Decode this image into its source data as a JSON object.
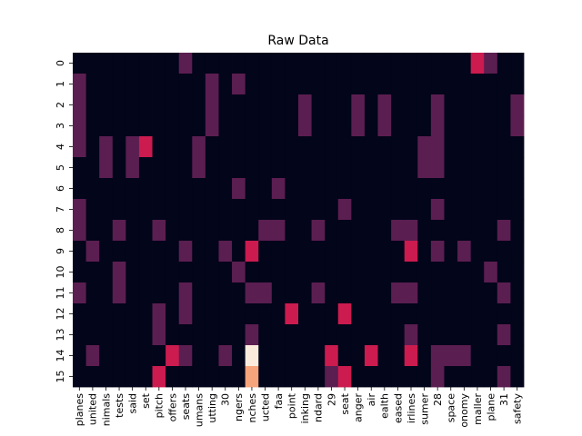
{
  "chart_data": {
    "type": "heatmap",
    "title": "Raw Data",
    "xlabel": "",
    "ylabel": "",
    "y_labels": [
      "0",
      "1",
      "2",
      "3",
      "4",
      "5",
      "6",
      "7",
      "8",
      "9",
      "10",
      "11",
      "12",
      "13",
      "14",
      "15"
    ],
    "x_labels": [
      "planes",
      "united",
      "nimals",
      "tests",
      "said",
      "set",
      "pitch",
      "offers",
      "seats",
      "umans",
      "utting",
      "30",
      "ngers",
      "nches",
      "ucted",
      "faa",
      "point",
      "inking",
      "ndard",
      "29",
      "seat",
      "anger",
      "air",
      "ealth",
      "eased",
      "irlines",
      "sumer",
      "28",
      "space",
      "onomy",
      "maller",
      "plane",
      "31",
      "safety"
    ],
    "colormap": [
      "#03051a",
      "#5b1e51",
      "#cb1b4f",
      "#f6a47b",
      "#faebdd"
    ],
    "vmin": 0,
    "vmax": 4,
    "grid": false,
    "colorbar": false,
    "values": [
      [
        0,
        0,
        0,
        0,
        0,
        0,
        0,
        0,
        1,
        0,
        0,
        0,
        0,
        0,
        0,
        0,
        0,
        0,
        0,
        0,
        0,
        0,
        0,
        0,
        0,
        0,
        0,
        0,
        0,
        0,
        2,
        1,
        0,
        0
      ],
      [
        1,
        0,
        0,
        0,
        0,
        0,
        0,
        0,
        0,
        0,
        1,
        0,
        1,
        0,
        0,
        0,
        0,
        0,
        0,
        0,
        0,
        0,
        0,
        0,
        0,
        0,
        0,
        0,
        0,
        0,
        0,
        0,
        0,
        0
      ],
      [
        1,
        0,
        0,
        0,
        0,
        0,
        0,
        0,
        0,
        0,
        1,
        0,
        0,
        0,
        0,
        0,
        0,
        1,
        0,
        0,
        0,
        1,
        0,
        1,
        0,
        0,
        0,
        1,
        0,
        0,
        0,
        0,
        0,
        1
      ],
      [
        1,
        0,
        0,
        0,
        0,
        0,
        0,
        0,
        0,
        0,
        1,
        0,
        0,
        0,
        0,
        0,
        0,
        1,
        0,
        0,
        0,
        1,
        0,
        1,
        0,
        0,
        0,
        1,
        0,
        0,
        0,
        0,
        0,
        1
      ],
      [
        1,
        0,
        1,
        0,
        1,
        2,
        0,
        0,
        0,
        1,
        0,
        0,
        0,
        0,
        0,
        0,
        0,
        0,
        0,
        0,
        0,
        0,
        0,
        0,
        0,
        0,
        1,
        1,
        0,
        0,
        0,
        0,
        0,
        0
      ],
      [
        0,
        0,
        1,
        0,
        1,
        0,
        0,
        0,
        0,
        1,
        0,
        0,
        0,
        0,
        0,
        0,
        0,
        0,
        0,
        0,
        0,
        0,
        0,
        0,
        0,
        0,
        1,
        1,
        0,
        0,
        0,
        0,
        0,
        0
      ],
      [
        0,
        0,
        0,
        0,
        0,
        0,
        0,
        0,
        0,
        0,
        0,
        0,
        1,
        0,
        0,
        1,
        0,
        0,
        0,
        0,
        0,
        0,
        0,
        0,
        0,
        0,
        0,
        0,
        0,
        0,
        0,
        0,
        0,
        0
      ],
      [
        1,
        0,
        0,
        0,
        0,
        0,
        0,
        0,
        0,
        0,
        0,
        0,
        0,
        0,
        0,
        0,
        0,
        0,
        0,
        0,
        1,
        0,
        0,
        0,
        0,
        0,
        0,
        1,
        0,
        0,
        0,
        0,
        0,
        0
      ],
      [
        1,
        0,
        0,
        1,
        0,
        0,
        1,
        0,
        0,
        0,
        0,
        0,
        0,
        0,
        1,
        1,
        0,
        0,
        1,
        0,
        0,
        0,
        0,
        0,
        1,
        1,
        0,
        0,
        0,
        0,
        0,
        0,
        1,
        0
      ],
      [
        0,
        1,
        0,
        0,
        0,
        0,
        0,
        0,
        1,
        0,
        0,
        1,
        0,
        2,
        0,
        0,
        0,
        0,
        0,
        0,
        0,
        0,
        0,
        0,
        0,
        2,
        0,
        1,
        0,
        1,
        0,
        0,
        0,
        0
      ],
      [
        0,
        0,
        0,
        1,
        0,
        0,
        0,
        0,
        0,
        0,
        0,
        0,
        1,
        0,
        0,
        0,
        0,
        0,
        0,
        0,
        0,
        0,
        0,
        0,
        0,
        0,
        0,
        0,
        0,
        0,
        0,
        1,
        0,
        0
      ],
      [
        1,
        0,
        0,
        1,
        0,
        0,
        0,
        0,
        1,
        0,
        0,
        0,
        0,
        1,
        1,
        0,
        0,
        0,
        1,
        0,
        0,
        0,
        0,
        0,
        1,
        1,
        0,
        0,
        0,
        0,
        0,
        0,
        1,
        0
      ],
      [
        0,
        0,
        0,
        0,
        0,
        0,
        1,
        0,
        1,
        0,
        0,
        0,
        0,
        0,
        0,
        0,
        2,
        0,
        0,
        0,
        2,
        0,
        0,
        0,
        0,
        0,
        0,
        0,
        0,
        0,
        0,
        0,
        0,
        0
      ],
      [
        0,
        0,
        0,
        0,
        0,
        0,
        1,
        0,
        0,
        0,
        0,
        0,
        0,
        1,
        0,
        0,
        0,
        0,
        0,
        0,
        0,
        0,
        0,
        0,
        0,
        1,
        0,
        0,
        0,
        0,
        0,
        0,
        1,
        0
      ],
      [
        0,
        1,
        0,
        0,
        0,
        0,
        0,
        2,
        1,
        0,
        0,
        1,
        0,
        4,
        0,
        0,
        0,
        0,
        0,
        2,
        0,
        0,
        2,
        0,
        0,
        2,
        0,
        1,
        1,
        1,
        0,
        0,
        0,
        0
      ],
      [
        0,
        0,
        0,
        0,
        0,
        0,
        2,
        0,
        0,
        0,
        0,
        0,
        0,
        3,
        0,
        0,
        0,
        0,
        0,
        1,
        2,
        0,
        0,
        0,
        0,
        0,
        0,
        1,
        0,
        0,
        0,
        0,
        1,
        0
      ]
    ]
  }
}
